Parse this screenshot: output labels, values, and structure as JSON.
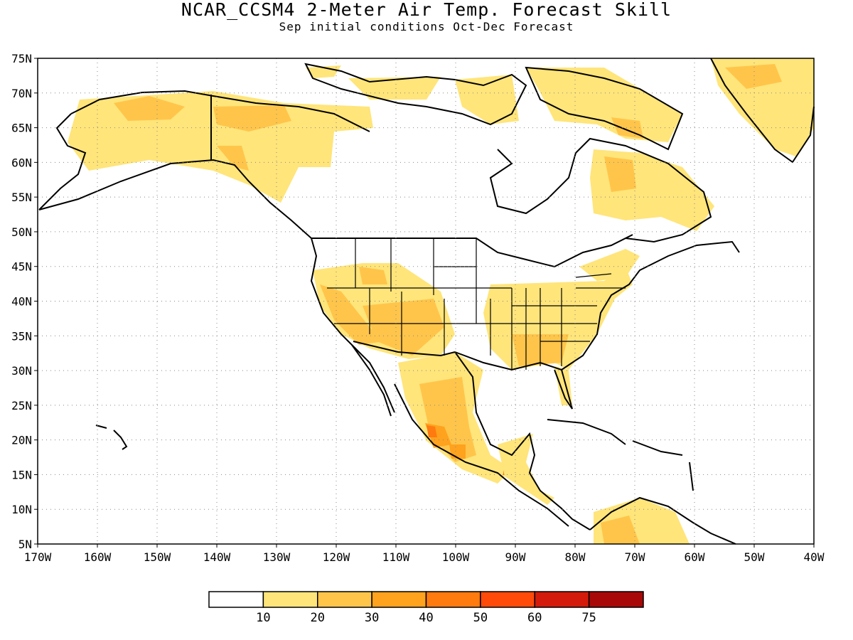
{
  "title": "NCAR_CCSM4 2-Meter Air Temp. Forecast Skill",
  "subtitle": "Sep initial conditions  Oct-Dec Forecast",
  "map": {
    "region": "North America",
    "lon_range": [
      -170,
      -40
    ],
    "lat_range": [
      5,
      75
    ],
    "lat_labels": [
      "75N",
      "70N",
      "65N",
      "60N",
      "55N",
      "50N",
      "45N",
      "40N",
      "35N",
      "30N",
      "25N",
      "20N",
      "15N",
      "10N",
      "5N"
    ],
    "lon_labels": [
      "170W",
      "160W",
      "150W",
      "140W",
      "130W",
      "120W",
      "110W",
      "100W",
      "90W",
      "80W",
      "70W",
      "60W",
      "50W",
      "40W"
    ],
    "gridlines": "dotted"
  },
  "colorbar": {
    "labels": [
      "10",
      "20",
      "30",
      "40",
      "50",
      "60",
      "75"
    ],
    "colors": [
      "#ffffff",
      "#ffe57a",
      "#ffc54a",
      "#ffa21e",
      "#ff7a0f",
      "#ff4a0a",
      "#d41a0a",
      "#a80808"
    ]
  }
}
